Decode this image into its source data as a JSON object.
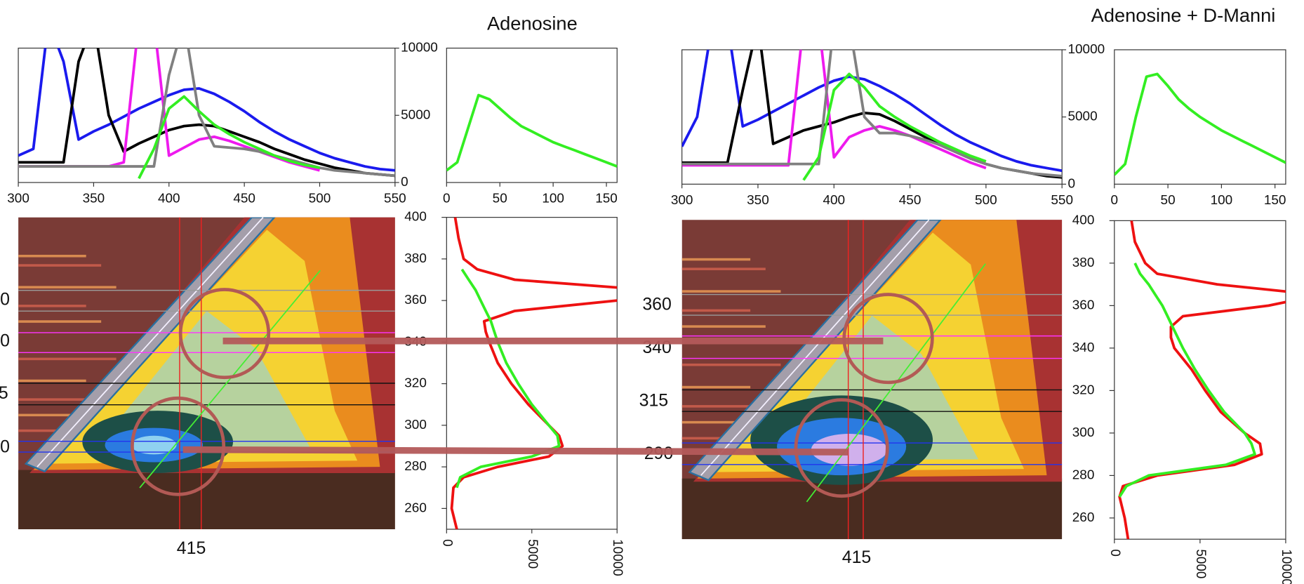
{
  "chart_data": [
    {
      "type": "line",
      "x": [
        300,
        310,
        320,
        330,
        340,
        350,
        360,
        370,
        380,
        390,
        400,
        410,
        420,
        430,
        440,
        450,
        460,
        470,
        480,
        490,
        500,
        510,
        520,
        530,
        540,
        550
      ],
      "xlim": [
        300,
        550
      ],
      "xticks": [
        300,
        350,
        400,
        450,
        500,
        550
      ],
      "ylim": [
        0,
        10000
      ],
      "yticks": [
        0,
        5000,
        10000
      ],
      "yaxis_side": "right",
      "series": [
        {
          "color": "#1a1aee",
          "values": [
            2000,
            2500,
            12000,
            9000,
            3200,
            3800,
            4300,
            4900,
            5500,
            6000,
            6500,
            6900,
            7000,
            6600,
            6000,
            5300,
            4500,
            3800,
            3200,
            2700,
            2200,
            1800,
            1500,
            1200,
            1000,
            900
          ]
        },
        {
          "color": "#000000",
          "values": [
            1500,
            1500,
            1500,
            1500,
            9000,
            12000,
            5000,
            2300,
            2900,
            3400,
            3900,
            4200,
            4300,
            4200,
            3800,
            3400,
            3000,
            2500,
            2100,
            1700,
            1400,
            1100,
            900,
            700,
            600,
            500
          ]
        },
        {
          "color": "#ee1aee",
          "values": [
            1200,
            1200,
            1200,
            1200,
            1200,
            1200,
            1200,
            1500,
            12000,
            12000,
            2000,
            2600,
            3200,
            3400,
            3100,
            2700,
            2300,
            1900,
            1500,
            1200,
            900,
            null,
            null,
            null,
            null,
            null
          ]
        },
        {
          "color": "#808080",
          "values": [
            1200,
            1200,
            1200,
            1200,
            1200,
            1200,
            1200,
            1200,
            1200,
            1200,
            8000,
            12000,
            5000,
            2700,
            2600,
            2500,
            2300,
            2000,
            1700,
            1400,
            1100,
            900,
            800,
            700,
            600,
            500
          ]
        },
        {
          "color": "#33ee22",
          "values": [
            null,
            null,
            null,
            null,
            null,
            null,
            null,
            null,
            300,
            2500,
            5500,
            6400,
            5300,
            4300,
            3600,
            3000,
            2500,
            2000,
            1600,
            1300,
            1100,
            null,
            null,
            null,
            null,
            null
          ]
        }
      ]
    },
    {
      "type": "line",
      "title": "Adenosine",
      "x": [
        0,
        10,
        20,
        30,
        40,
        50,
        60,
        70,
        80,
        90,
        100,
        110,
        120,
        130,
        140,
        150,
        160
      ],
      "xlim": [
        0,
        160
      ],
      "xticks": [
        0,
        50,
        100,
        150
      ],
      "ylim": [
        0,
        10000
      ],
      "series": [
        {
          "color": "#33ee22",
          "values": [
            900,
            1500,
            4000,
            6500,
            6200,
            5500,
            4800,
            4200,
            3800,
            3400,
            3000,
            2700,
            2400,
            2100,
            1800,
            1500,
            1200
          ]
        }
      ]
    },
    {
      "type": "image",
      "x_label": "415",
      "y_labels": [
        "0",
        "0",
        "5",
        "0"
      ]
    },
    {
      "type": "line",
      "orientation": "rotated",
      "x": [
        400,
        390,
        380,
        375,
        370,
        365,
        360,
        355,
        350,
        345,
        340,
        330,
        320,
        310,
        300,
        295,
        290,
        285,
        280,
        275,
        270,
        260,
        250
      ],
      "xlim": [
        250,
        400
      ],
      "xticks": [
        260,
        280,
        300,
        320,
        340,
        360,
        380,
        400
      ],
      "ylim": [
        0,
        10000
      ],
      "yticks": [
        0,
        5000,
        10000
      ],
      "series": [
        {
          "color": "#ee1111",
          "values": [
            500,
            700,
            1000,
            1800,
            4000,
            12000,
            10000,
            4000,
            2200,
            2300,
            2500,
            3000,
            3800,
            4800,
            6000,
            6600,
            6800,
            6000,
            3000,
            1000,
            400,
            300,
            600
          ]
        },
        {
          "color": "#33ee22",
          "values": [
            null,
            null,
            null,
            900,
            1300,
            1700,
            2000,
            2300,
            2600,
            2800,
            3000,
            3500,
            4200,
            5000,
            6000,
            6500,
            6600,
            5000,
            2000,
            800,
            600,
            null,
            null
          ]
        }
      ]
    },
    {
      "type": "line",
      "x": [
        300,
        310,
        320,
        330,
        340,
        350,
        360,
        370,
        380,
        390,
        400,
        410,
        420,
        430,
        440,
        450,
        460,
        470,
        480,
        490,
        500,
        510,
        520,
        530,
        540,
        550
      ],
      "xlim": [
        300,
        550
      ],
      "xticks": [
        300,
        350,
        400,
        450,
        500,
        550
      ],
      "ylim": [
        0,
        10000
      ],
      "yticks": [
        0,
        5000,
        10000
      ],
      "yaxis_side": "right",
      "series": [
        {
          "color": "#1a1aee",
          "values": [
            2800,
            5000,
            12000,
            12000,
            4300,
            4800,
            5400,
            6000,
            6600,
            7200,
            7700,
            8000,
            7800,
            7300,
            6700,
            6000,
            5200,
            4400,
            3700,
            3100,
            2600,
            2100,
            1700,
            1400,
            1200,
            1000
          ]
        },
        {
          "color": "#000000",
          "values": [
            1600,
            1600,
            1600,
            1600,
            7000,
            12000,
            3000,
            3500,
            4000,
            4300,
            4600,
            5000,
            5300,
            5200,
            4700,
            4100,
            3500,
            2900,
            2400,
            1900,
            1500,
            1200,
            1000,
            800,
            600,
            500
          ]
        },
        {
          "color": "#ee1aee",
          "values": [
            1400,
            1400,
            1400,
            1400,
            1400,
            1400,
            1400,
            1400,
            12000,
            12000,
            2000,
            3500,
            4000,
            4300,
            4000,
            3600,
            3100,
            2600,
            2100,
            1600,
            1200,
            null,
            null,
            null,
            null,
            null
          ]
        },
        {
          "color": "#808080",
          "values": [
            1500,
            1500,
            1500,
            1500,
            1500,
            1500,
            1500,
            1500,
            1500,
            1500,
            12000,
            12000,
            5000,
            3800,
            3800,
            3600,
            3300,
            2900,
            2400,
            1900,
            1500,
            1200,
            1000,
            800,
            700,
            600
          ]
        },
        {
          "color": "#33ee22",
          "values": [
            null,
            null,
            null,
            null,
            null,
            null,
            null,
            null,
            300,
            2000,
            7000,
            8200,
            7200,
            5800,
            5000,
            4300,
            3700,
            3100,
            2600,
            2100,
            1700,
            null,
            null,
            null,
            null,
            null
          ]
        }
      ]
    },
    {
      "type": "line",
      "title": "Adenosine + D-Manni",
      "x": [
        0,
        10,
        20,
        30,
        40,
        50,
        60,
        70,
        80,
        90,
        100,
        110,
        120,
        130,
        140,
        150,
        160
      ],
      "xlim": [
        0,
        160
      ],
      "xticks": [
        0,
        50,
        100,
        150
      ],
      "ylim": [
        0,
        10000
      ],
      "series": [
        {
          "color": "#33ee22",
          "values": [
            700,
            1500,
            5000,
            8000,
            8200,
            7300,
            6300,
            5600,
            5000,
            4500,
            4000,
            3600,
            3200,
            2800,
            2400,
            2000,
            1600
          ]
        }
      ]
    },
    {
      "type": "image",
      "x_label": "415",
      "y_labels": [
        "360",
        "340",
        "315",
        "290"
      ]
    },
    {
      "type": "line",
      "orientation": "rotated",
      "x": [
        400,
        390,
        380,
        375,
        370,
        365,
        360,
        355,
        350,
        345,
        340,
        330,
        320,
        310,
        300,
        295,
        290,
        285,
        280,
        275,
        270,
        260,
        250
      ],
      "xlim": [
        250,
        400
      ],
      "xticks": [
        260,
        280,
        300,
        320,
        340,
        360,
        380,
        400
      ],
      "ylim": [
        0,
        10000
      ],
      "yticks": [
        0,
        5000,
        10000
      ],
      "series": [
        {
          "color": "#ee1111",
          "values": [
            1000,
            1200,
            1800,
            2500,
            6000,
            12000,
            9000,
            4000,
            3300,
            3300,
            3500,
            4500,
            5300,
            6200,
            7600,
            8500,
            8600,
            7000,
            2500,
            500,
            300,
            600,
            800
          ]
        },
        {
          "color": "#33ee22",
          "values": [
            null,
            null,
            1200,
            1500,
            2000,
            2400,
            2800,
            3100,
            3400,
            3700,
            4000,
            4700,
            5500,
            6400,
            7600,
            8000,
            8200,
            6500,
            2000,
            700,
            300,
            null,
            null
          ]
        }
      ]
    }
  ]
}
